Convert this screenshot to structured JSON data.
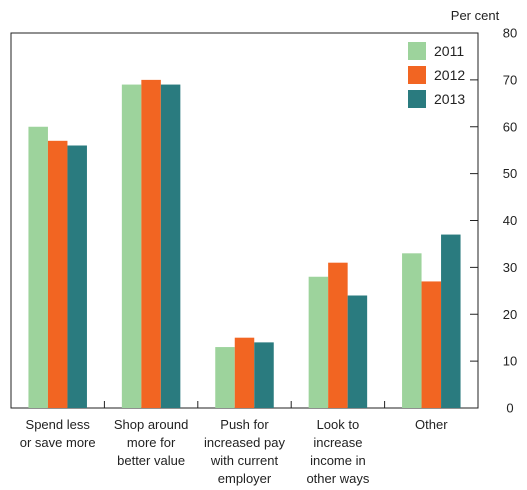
{
  "chart_data": {
    "type": "bar",
    "unit_label": "Per cent",
    "categories": [
      [
        "Spend less",
        "or save more"
      ],
      [
        "Shop around",
        "more for",
        "better value"
      ],
      [
        "Push for",
        "increased pay",
        "with current",
        "employer"
      ],
      [
        "Look to",
        "increase",
        "income in",
        "other ways"
      ],
      [
        "Other"
      ]
    ],
    "series": [
      {
        "name": "2011",
        "color": "#9dd39c",
        "values": [
          60,
          69,
          13,
          28,
          33
        ]
      },
      {
        "name": "2012",
        "color": "#f26522",
        "values": [
          57,
          70,
          15,
          31,
          27
        ]
      },
      {
        "name": "2013",
        "color": "#2a7b7f",
        "values": [
          56,
          69,
          14,
          24,
          37
        ]
      }
    ],
    "ylim": [
      0,
      80
    ],
    "yticks": [
      0,
      10,
      20,
      30,
      40,
      50,
      60,
      70,
      80
    ],
    "legend_position": "top-right",
    "grid": false
  }
}
